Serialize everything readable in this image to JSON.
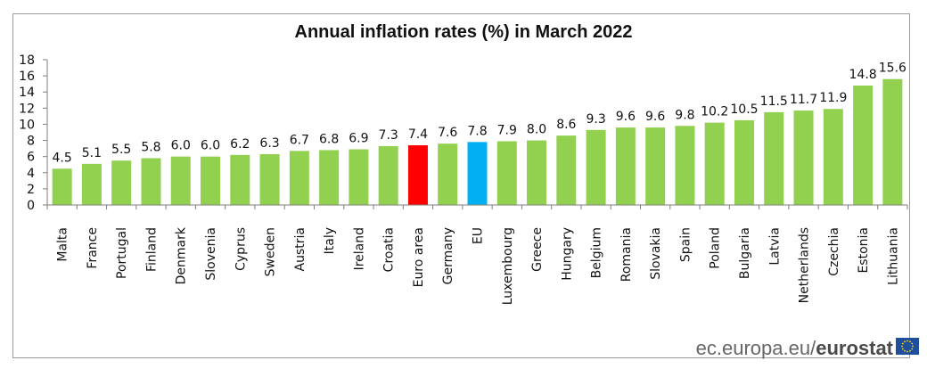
{
  "chart_data": {
    "type": "bar",
    "title": "Annual inflation rates (%) in March 2022",
    "xlabel": "",
    "ylabel": "",
    "ylim": [
      0,
      18
    ],
    "yticks": [
      0,
      2,
      4,
      6,
      8,
      10,
      12,
      14,
      16,
      18
    ],
    "grid": false,
    "legend": "none",
    "categories": [
      "Malta",
      "France",
      "Portugal",
      "Finland",
      "Denmark",
      "Slovenia",
      "Cyprus",
      "Sweden",
      "Austria",
      "Italy",
      "Ireland",
      "Croatia",
      "Euro area",
      "Germany",
      "EU",
      "Luxembourg",
      "Greece",
      "Hungary",
      "Belgium",
      "Romania",
      "Slovakia",
      "Spain",
      "Poland",
      "Bulgaria",
      "Latvia",
      "Netherlands",
      "Czechia",
      "Estonia",
      "Lithuania"
    ],
    "values": [
      4.5,
      5.1,
      5.5,
      5.8,
      6.0,
      6.0,
      6.2,
      6.3,
      6.7,
      6.8,
      6.9,
      7.3,
      7.4,
      7.6,
      7.8,
      7.9,
      8.0,
      8.6,
      9.3,
      9.6,
      9.6,
      9.8,
      10.2,
      10.5,
      11.5,
      11.7,
      11.9,
      14.8,
      15.6
    ],
    "value_labels": [
      "4.5",
      "5.1",
      "5.5",
      "5.8",
      "6.0",
      "6.0",
      "6.2",
      "6.3",
      "6.7",
      "6.8",
      "6.9",
      "7.3",
      "7.4",
      "7.6",
      "7.8",
      "7.9",
      "8.0",
      "8.6",
      "9.3",
      "9.6",
      "9.6",
      "9.8",
      "10.2",
      "10.5",
      "11.5",
      "11.7",
      "11.9",
      "14.8",
      "15.6"
    ],
    "colors": {
      "default": "#92d050",
      "highlight": {
        "Euro area": "#ff0000",
        "EU": "#00b0f0"
      }
    }
  },
  "source": {
    "site": "ec.europa.eu/",
    "brand": "eurostat"
  },
  "icons": {
    "logo": "eu-flag-icon"
  }
}
